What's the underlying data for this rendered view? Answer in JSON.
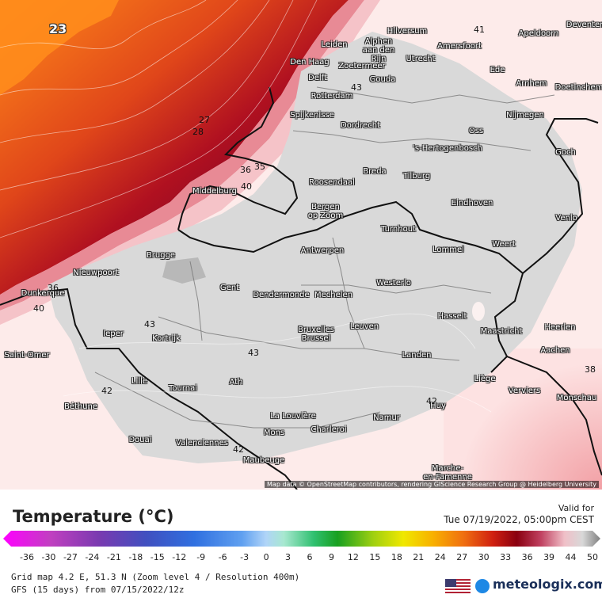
{
  "map": {
    "corner_value": "23",
    "credit": "Map data © OpenStreetMap contributors, rendering GIScience Research Group @ Heidelberg University",
    "isolines": [
      "41",
      "43",
      "27",
      "28",
      "36",
      "35",
      "40",
      "36",
      "40",
      "43",
      "43",
      "42",
      "42",
      "42",
      "38"
    ],
    "cities": [
      {
        "name": "Hilversum"
      },
      {
        "name": "Apeldoorn"
      },
      {
        "name": "Deventer"
      },
      {
        "name": "Leiden"
      },
      {
        "name": "Alphen\naan den\nRijn"
      },
      {
        "name": "Amersfoort"
      },
      {
        "name": "Den Haag"
      },
      {
        "name": "Zoetermeer"
      },
      {
        "name": "Utrecht"
      },
      {
        "name": "Delft"
      },
      {
        "name": "Gouda"
      },
      {
        "name": "Ede"
      },
      {
        "name": "Arnhem"
      },
      {
        "name": "Doetinchem"
      },
      {
        "name": "Rotterdam"
      },
      {
        "name": "Spijkenisse"
      },
      {
        "name": "Dordrecht"
      },
      {
        "name": "Nijmegen"
      },
      {
        "name": "Oss"
      },
      {
        "name": "'s-Hertogenbosch"
      },
      {
        "name": "Goch"
      },
      {
        "name": "Breda"
      },
      {
        "name": "Tilburg"
      },
      {
        "name": "Middelburg"
      },
      {
        "name": "Roosendaal"
      },
      {
        "name": "Bergen\nop Zoom"
      },
      {
        "name": "Eindhoven"
      },
      {
        "name": "Venlo"
      },
      {
        "name": "Turnhout"
      },
      {
        "name": "Weert"
      },
      {
        "name": "Brugge"
      },
      {
        "name": "Antwerpen"
      },
      {
        "name": "Lommel"
      },
      {
        "name": "Nieuwpoort"
      },
      {
        "name": "Gent"
      },
      {
        "name": "Westerlo"
      },
      {
        "name": "Dunkerque"
      },
      {
        "name": "Dendermonde"
      },
      {
        "name": "Mechelen"
      },
      {
        "name": "Hasselt"
      },
      {
        "name": "Ieper"
      },
      {
        "name": "Bruxelles\nBrussel"
      },
      {
        "name": "Leuven"
      },
      {
        "name": "Maastricht"
      },
      {
        "name": "Heerlen"
      },
      {
        "name": "Kortrijk"
      },
      {
        "name": "Aachen"
      },
      {
        "name": "Saint-Omer"
      },
      {
        "name": "Landen"
      },
      {
        "name": "Liège"
      },
      {
        "name": "Lille"
      },
      {
        "name": "Ath"
      },
      {
        "name": "Tournai"
      },
      {
        "name": "Verviers"
      },
      {
        "name": "Monschau"
      },
      {
        "name": "Béthune"
      },
      {
        "name": "Huy"
      },
      {
        "name": "La Louvière"
      },
      {
        "name": "Namur"
      },
      {
        "name": "Charleroi"
      },
      {
        "name": "Mons"
      },
      {
        "name": "Douai"
      },
      {
        "name": "Valenciennes"
      },
      {
        "name": "Maubeuge"
      },
      {
        "name": "Marche-\nen-Famenne"
      }
    ]
  },
  "legend": {
    "title": "Temperature (°C)",
    "valid_label": "Valid for",
    "valid_time": "Tue 07/19/2022, 05:00pm CEST",
    "ticks": [
      "-36",
      "-30",
      "-27",
      "-24",
      "-21",
      "-18",
      "-15",
      "-12",
      "-9",
      "-6",
      "-3",
      "0",
      "3",
      "6",
      "9",
      "12",
      "15",
      "18",
      "21",
      "24",
      "27",
      "30",
      "33",
      "36",
      "39",
      "44",
      "50"
    ],
    "grid_info": "Grid map 4.2 E, 51.3 N (Zoom level 4 / Resolution 400m)",
    "model_info": "GFS (15 days) from  07/15/2022/12z",
    "brand": "meteologix.com"
  }
}
